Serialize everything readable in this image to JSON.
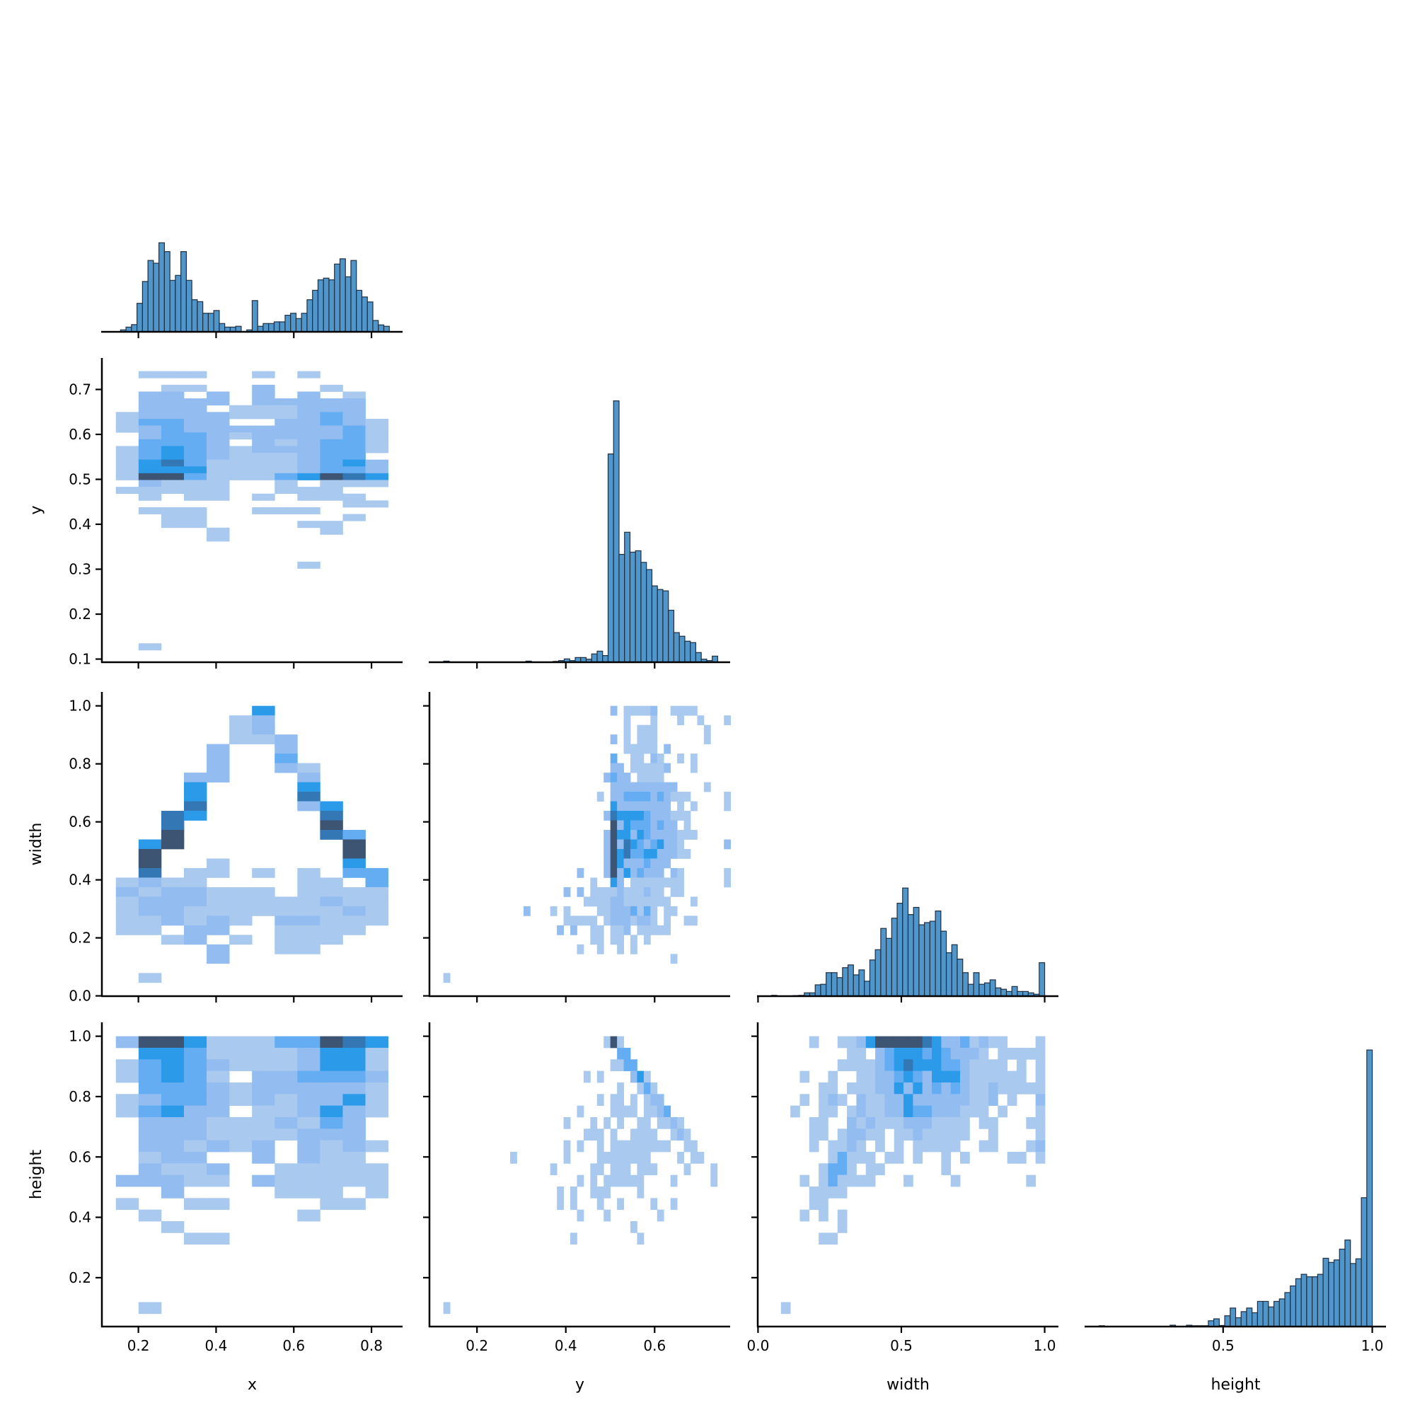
{
  "chart_data": {
    "type": "pairplot-histogram",
    "corner": true,
    "variables": [
      "x",
      "y",
      "width",
      "height"
    ],
    "axes": {
      "x": {
        "label": "x",
        "lim": [
          0.106,
          0.88
        ],
        "x_ticks": [
          "0.2",
          "0.4",
          "0.6",
          "0.8"
        ],
        "y_ticks": []
      },
      "y": {
        "label": "y",
        "lim": [
          0.093,
          0.77
        ],
        "x_ticks": [
          "0.2",
          "0.4",
          "0.6"
        ],
        "y_ticks": [
          "0.1",
          "0.2",
          "0.3",
          "0.4",
          "0.5",
          "0.6",
          "0.7"
        ]
      },
      "width": {
        "label": "width",
        "lim": [
          -0.001,
          1.048
        ],
        "x_ticks": [
          "0.0",
          "0.5",
          "1.0"
        ],
        "y_ticks": [
          "0.0",
          "0.2",
          "0.4",
          "0.6",
          "0.8",
          "1.0"
        ]
      },
      "height": {
        "label": "height",
        "lim": [
          0.038,
          1.046
        ],
        "x_ticks": [
          "0.5",
          "1.0"
        ],
        "y_ticks": [
          "0.2",
          "0.4",
          "0.6",
          "0.8",
          "1.0"
        ]
      }
    },
    "diagonal_count_lim": [
      0,
      110
    ],
    "diagonal": [
      {
        "variable": "x",
        "bins": {
          "start": 0.154,
          "step": 0.01412
        },
        "relative_counts": [
          0.7,
          1.7,
          2.6,
          10.3,
          18.2,
          25.8,
          24.8,
          32.2,
          29.0,
          18.6,
          20.4,
          29.0,
          18.6,
          11.6,
          10.9,
          6.7,
          6.7,
          7.7,
          3.0,
          1.7,
          1.7,
          2.0,
          0,
          0.7,
          11.3,
          2.0,
          3.0,
          3.0,
          3.6,
          3.6,
          6.0,
          6.7,
          4.8,
          6.7,
          11.6,
          15.0,
          18.8,
          19.4,
          18.8,
          24.5,
          26.4,
          19.9,
          25.8,
          15.0,
          12.6,
          10.8,
          4.1,
          2.5,
          2.0
        ]
      },
      {
        "variable": "y",
        "bins": {
          "start": 0.125,
          "step": 0.01234
        },
        "relative_counts": [
          0.4,
          0,
          0,
          0,
          0,
          0,
          0,
          0,
          0,
          0,
          0,
          0,
          0,
          0,
          0,
          0.4,
          0,
          0,
          0,
          0,
          0.3,
          0.6,
          1.2,
          0.6,
          1.7,
          1.7,
          1.1,
          3.0,
          4.0,
          2.4,
          75.3,
          94.5,
          39.0,
          47.0,
          39.8,
          40.3,
          36.1,
          33.5,
          27.6,
          26.3,
          25.8,
          18.8,
          10.7,
          9.4,
          7.6,
          7.1,
          3.5,
          1.1,
          0.6,
          2.2
        ]
      },
      {
        "variable": "width",
        "bins": {
          "start": 0.047,
          "step": 0.01906
        },
        "relative_counts": [
          0.3,
          0,
          0,
          0,
          0.2,
          0.3,
          1.2,
          1.2,
          4.1,
          4.3,
          8.5,
          8.5,
          6.7,
          10.3,
          11.3,
          7.7,
          9.5,
          5.4,
          13.1,
          16.8,
          24.5,
          20.9,
          28.2,
          33.6,
          39.1,
          29.5,
          32.1,
          25.8,
          26.6,
          27.1,
          30.8,
          23.5,
          15.7,
          18.6,
          13.4,
          8.5,
          4.3,
          8.5,
          4.3,
          4.8,
          5.9,
          3.0,
          2.5,
          1.7,
          3.5,
          1.7,
          1.7,
          1.2,
          0.7,
          12.1
        ]
      },
      {
        "variable": "height",
        "bins": {
          "start": 0.084,
          "step": 0.01832
        },
        "relative_counts": [
          0.3,
          0,
          0,
          0,
          0,
          0,
          0,
          0,
          0,
          0,
          0,
          0,
          0,
          0.5,
          0,
          0,
          0.5,
          0.3,
          0.3,
          0.3,
          2.1,
          2.8,
          0.4,
          3.9,
          6.7,
          3.2,
          5.4,
          6.7,
          5.0,
          9.1,
          9.1,
          7.1,
          9.1,
          10.0,
          12.3,
          14.7,
          17.3,
          18.9,
          18.0,
          18.0,
          18.9,
          24.7,
          23.2,
          24.1,
          28.0,
          31.3,
          22.8,
          24.5,
          46.6,
          100
        ]
      }
    ],
    "heatmaps": [
      {
        "x": "x",
        "y": "y",
        "x_bins": {
          "start": 0.142,
          "step": 0.0584
        },
        "y_bins": {
          "start": 0.7407,
          "step": -0.01514
        },
        "density_levels": [
          "011100101000",
          "",
          "001100200100",
          "022020202010",
          "022220222220",
          "022201112220",
          "122221112320",
          "133220022321",
          "123222222231",
          "023321222231",
          "033320212331",
          "134321222331",
          "134321112330",
          "145311112342",
          "144411112332",
          "166311134654",
          "021110010111",
          "111110011100",
          "010110101110",
          "000000000011",
          "011100111000",
          "001100000010",
          "001100001100",
          "000010000100",
          "000010000000",
          "",
          "",
          "",
          "000000001000",
          "",
          "",
          "",
          "",
          "",
          "",
          "",
          "",
          "",
          "",
          "",
          "010000000000"
        ]
      },
      {
        "x": "x",
        "y": "width",
        "x_bins": {
          "start": 0.142,
          "step": 0.0584
        },
        "y_bins": {
          "start": 1.0,
          "step": -0.0329
        },
        "density_levels": [
          "000000400000",
          "000001200000",
          "000001200000",
          "000001120000",
          "000020020000",
          "000020030000",
          "000020021000",
          "000220002000",
          "000400004000",
          "000400005000",
          "000500002400",
          "005400000500",
          "005000000600",
          "006000000530",
          "046000000060",
          "060000000060",
          "060010000040",
          "050110101033",
          "121100001103",
          "212211101111",
          "122211111211",
          "122111111121",
          "112121022111",
          "110220011110",
          "001201011100",
          "000020011000",
          "000020000000",
          "",
          "010000000000"
        ]
      },
      {
        "x": "y",
        "y": "width",
        "x_bins": {
          "start": 0.1243,
          "step": 0.01504
        },
        "y_bins": {
          "start": 1.0,
          "step": -0.0329
        },
        "density_levels": [
          "0000000000000000000000000201111200111100",
          "00000000000000000000000000010001000100100010",
          "00000000000000000000000000010111000000010",
          "00000000000000000000000002010111000000010",
          "00000000000000000000000000011111020000000",
          "00000000000000000000000003001102100101",
          "000000000000000000000000022011111200010",
          "0000000000000000000000002322011110",
          "00000000000000000000000002222222222000010",
          "00000000000000000000000102233332321110000010",
          "00000000000000000000000004222222220101000010",
          "0000000000000000000000002544443222111",
          "0000000000000000000000000624333232201",
          "00000000000000000000000026442432222111",
          "00000000000000000000000026254323422100000020",
          "0000000000000000000000002645334422211",
          "0000000000000000000000002642223222",
          "00000000000000000000200026242322202100000010",
          "00000000000000000000001004201111111100000010",
          "000000000000000000202011112111211011",
          "0000000000000000000001111221111111000100",
          "0000000000002000101000011222313101100",
          "00000000000000000011111012221221010011",
          "000000000000000002020011011201111100",
          "000000000000000000000011011010100",
          "0000000000000000000010010010100",
          "00000000000000000000000000000000001",
          "",
          "1"
        ]
      },
      {
        "x": "x",
        "y": "height",
        "x_bins": {
          "start": 0.142,
          "step": 0.0584
        },
        "y_bins": {
          "start": 1.0,
          "step": -0.0383
        },
        "density_levels": [
          "266411133654",
          "044311112441",
          "134321112441",
          "134310223332",
          "033321222221",
          "123321212241",
          "134220112421",
          "022211121320",
          "022211112220",
          "022121202121",
          "012200202110",
          "021120011111",
          "222110211111",
          "002000011101",
          "100110000110",
          "010000001000",
          "001000000000",
          "000110000000",
          "",
          "",
          "",
          "",
          "",
          "010000000000"
        ]
      },
      {
        "x": "y",
        "y": "height",
        "x_bins": {
          "start": 0.1243,
          "step": 0.01504
        },
        "y_bins": {
          "start": 1.0,
          "step": -0.0383
        },
        "density_levels": [
          "000000000000000000000000161",
          "0000000000000000000000000033",
          "00000000000000000000000001133",
          "0000000000000000000001010000241",
          "00000000000000000000000000100131",
          "000000000000000000000001011010122",
          "0000000000000000000010000111101123",
          "000000000000000000100010101001101121",
          "0000000000000000000001110100111100121",
          "00000000000000000010100101111111110011",
          "000000000010000000100001111111100001011",
          "00000000000000001000001101110111000010001",
          "00000000000000000000101011111100001000001",
          "000000000000000001010011100001",
          "00000000000000000101000100100001001",
          "000000000000000000001000100000001",
          "00000000000000000000000000001",
          "000000000000000000010000000001",
          "",
          "",
          "",
          "",
          "",
          "1"
        ]
      },
      {
        "x": "width",
        "y": "height",
        "x_bins": {
          "start": 0.047,
          "step": 0.0329
        },
        "y_bins": {
          "start": 1.0,
          "step": -0.0383
        },
        "density_levels": [
          "00001001124666665422312110001",
          "00000000110234443432221011111",
          "00000001111234544433211110101",
          "00010010011223432444211111101",
          "00000110111224242323211211111",
          "00010121021122422222211201002",
          "00100110121122433222111010001",
          "00001100212111222111101100011",
          "00001101221101121111100100001",
          "00001011210101011111001100012",
          "00000013111011010010100001101",
          "00000133101100000010",
          "00010131111000100001000000010",
          "00001111",
          "000011",
          "00010101",
          "00000001",
          "0000011",
          "",
          "",
          "",
          "",
          "",
          "01"
        ]
      }
    ],
    "colors": {
      "hist_fill": "#5196cb",
      "hist_edge": "#1f2f40",
      "density_levels": [
        "#ffffff",
        "#a9c9ef",
        "#93bdf0",
        "#64adf2",
        "#2b9be9",
        "#3377b5",
        "#3d5473"
      ]
    }
  }
}
